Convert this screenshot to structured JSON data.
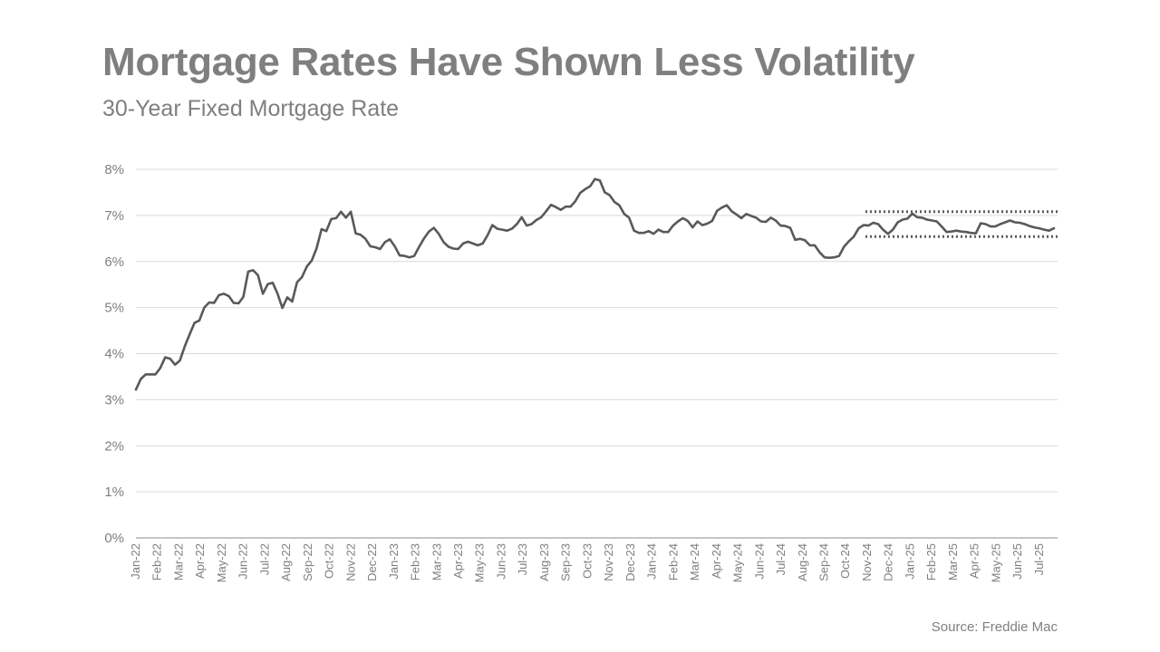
{
  "header": {
    "title": "Mortgage Rates Have Shown Less Volatility",
    "subtitle": "30-Year Fixed Mortgage Rate"
  },
  "footer": {
    "source": "Source: Freddie Mac"
  },
  "colors": {
    "text": "#7f7f7f",
    "line": "#595959",
    "grid": "#d9d9d9",
    "band": "#595959"
  },
  "chart_data": {
    "type": "line",
    "xlabel": "",
    "ylabel": "",
    "ylim": [
      0,
      8
    ],
    "yticks": [
      "0%",
      "1%",
      "2%",
      "3%",
      "4%",
      "5%",
      "6%",
      "7%",
      "8%"
    ],
    "grid": true,
    "x_ticks": [
      "Jan-22",
      "Feb-22",
      "Mar-22",
      "Apr-22",
      "May-22",
      "Jun-22",
      "Jul-22",
      "Aug-22",
      "Sep-22",
      "Oct-22",
      "Nov-22",
      "Dec-22",
      "Jan-23",
      "Feb-23",
      "Mar-23",
      "Apr-23",
      "May-23",
      "Jun-23",
      "Jul-23",
      "Aug-23",
      "Sep-23",
      "Oct-23",
      "Nov-23",
      "Dec-23",
      "Jan-24",
      "Feb-24",
      "Mar-24",
      "Apr-24",
      "May-24",
      "Jun-24",
      "Jul-24",
      "Aug-24",
      "Sep-24",
      "Oct-24",
      "Nov-24",
      "Dec-24",
      "Jan-25",
      "Feb-25",
      "Mar-25",
      "Apr-25",
      "May-25",
      "Jun-25",
      "Jul-25"
    ],
    "series": [
      {
        "values": [
          3.22,
          3.45,
          3.55,
          3.55,
          3.55,
          3.69,
          3.92,
          3.89,
          3.76,
          3.85,
          4.16,
          4.42,
          4.67,
          4.72,
          5.0,
          5.11,
          5.1,
          5.27,
          5.3,
          5.25,
          5.1,
          5.09,
          5.23,
          5.78,
          5.81,
          5.7,
          5.3,
          5.51,
          5.54,
          5.3,
          4.99,
          5.22,
          5.13,
          5.55,
          5.66,
          5.89,
          6.02,
          6.29,
          6.7,
          6.66,
          6.92,
          6.94,
          7.08,
          6.95,
          7.08,
          6.61,
          6.58,
          6.49,
          6.33,
          6.31,
          6.27,
          6.42,
          6.48,
          6.33,
          6.13,
          6.12,
          6.09,
          6.12,
          6.32,
          6.5,
          6.65,
          6.73,
          6.6,
          6.42,
          6.32,
          6.28,
          6.27,
          6.39,
          6.43,
          6.39,
          6.35,
          6.39,
          6.57,
          6.79,
          6.71,
          6.69,
          6.67,
          6.71,
          6.81,
          6.96,
          6.78,
          6.81,
          6.9,
          6.96,
          7.09,
          7.23,
          7.18,
          7.12,
          7.19,
          7.19,
          7.31,
          7.49,
          7.57,
          7.63,
          7.79,
          7.76,
          7.5,
          7.44,
          7.29,
          7.22,
          7.03,
          6.95,
          6.67,
          6.62,
          6.62,
          6.66,
          6.6,
          6.69,
          6.64,
          6.64,
          6.78,
          6.87,
          6.94,
          6.88,
          6.74,
          6.87,
          6.79,
          6.82,
          6.88,
          7.1,
          7.17,
          7.22,
          7.09,
          7.02,
          6.94,
          7.03,
          6.99,
          6.95,
          6.87,
          6.86,
          6.95,
          6.89,
          6.78,
          6.77,
          6.73,
          6.47,
          6.49,
          6.46,
          6.35,
          6.35,
          6.2,
          6.09,
          6.08,
          6.09,
          6.12,
          6.32,
          6.44,
          6.54,
          6.72,
          6.79,
          6.78,
          6.84,
          6.81,
          6.69,
          6.6,
          6.69,
          6.85,
          6.91,
          6.93,
          7.04,
          6.96,
          6.95,
          6.91,
          6.89,
          6.87,
          6.76,
          6.64,
          6.65,
          6.67,
          6.65,
          6.64,
          6.62,
          6.61,
          6.83,
          6.81,
          6.76,
          6.76,
          6.81,
          6.85,
          6.89,
          6.85,
          6.84,
          6.81,
          6.77,
          6.74,
          6.72,
          6.69,
          6.67,
          6.72
        ]
      }
    ],
    "band": {
      "upper": 7.08,
      "lower": 6.54,
      "start": "Nov-24",
      "end": "Jul-25"
    }
  }
}
